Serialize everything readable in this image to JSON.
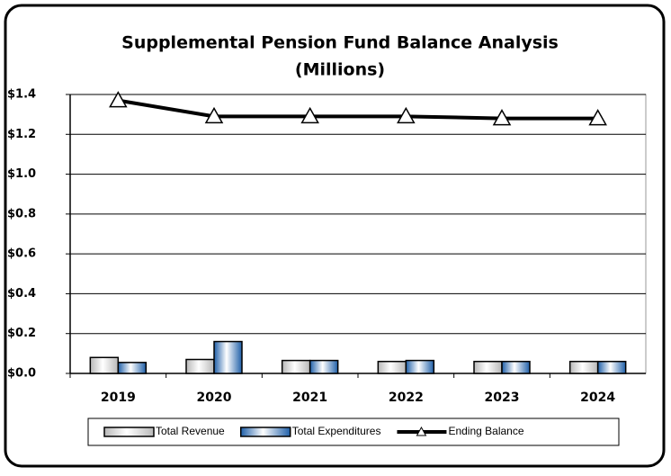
{
  "chart_data": {
    "type": "bar",
    "title": "Supplemental Pension Fund Balance Analysis",
    "subtitle": "(Millions)",
    "categories": [
      "2019",
      "2020",
      "2021",
      "2022",
      "2023",
      "2024"
    ],
    "series": [
      {
        "name": "Total Revenue",
        "type": "bar",
        "color": "#b8b8b8",
        "values": [
          0.08,
          0.07,
          0.065,
          0.06,
          0.06,
          0.06
        ]
      },
      {
        "name": "Total Expenditures",
        "type": "bar",
        "color": "#1f5fa8",
        "values": [
          0.055,
          0.16,
          0.065,
          0.065,
          0.06,
          0.06
        ]
      },
      {
        "name": "Ending Balance",
        "type": "line",
        "color": "#000000",
        "values": [
          1.37,
          1.29,
          1.29,
          1.29,
          1.28,
          1.28
        ]
      }
    ],
    "ylim": [
      0,
      1.4
    ],
    "yticks": [
      {
        "value": 0,
        "label": "$0.0"
      },
      {
        "value": 0.2,
        "label": "$0.2"
      },
      {
        "value": 0.4,
        "label": "$0.4"
      },
      {
        "value": 0.6,
        "label": "$0.6"
      },
      {
        "value": 0.8,
        "label": "$0.8"
      },
      {
        "value": 1.0,
        "label": "$1.0"
      },
      {
        "value": 1.2,
        "label": "$1.2"
      },
      {
        "value": 1.4,
        "label": "$1.4"
      }
    ],
    "grid": true,
    "legend": "bottom"
  }
}
